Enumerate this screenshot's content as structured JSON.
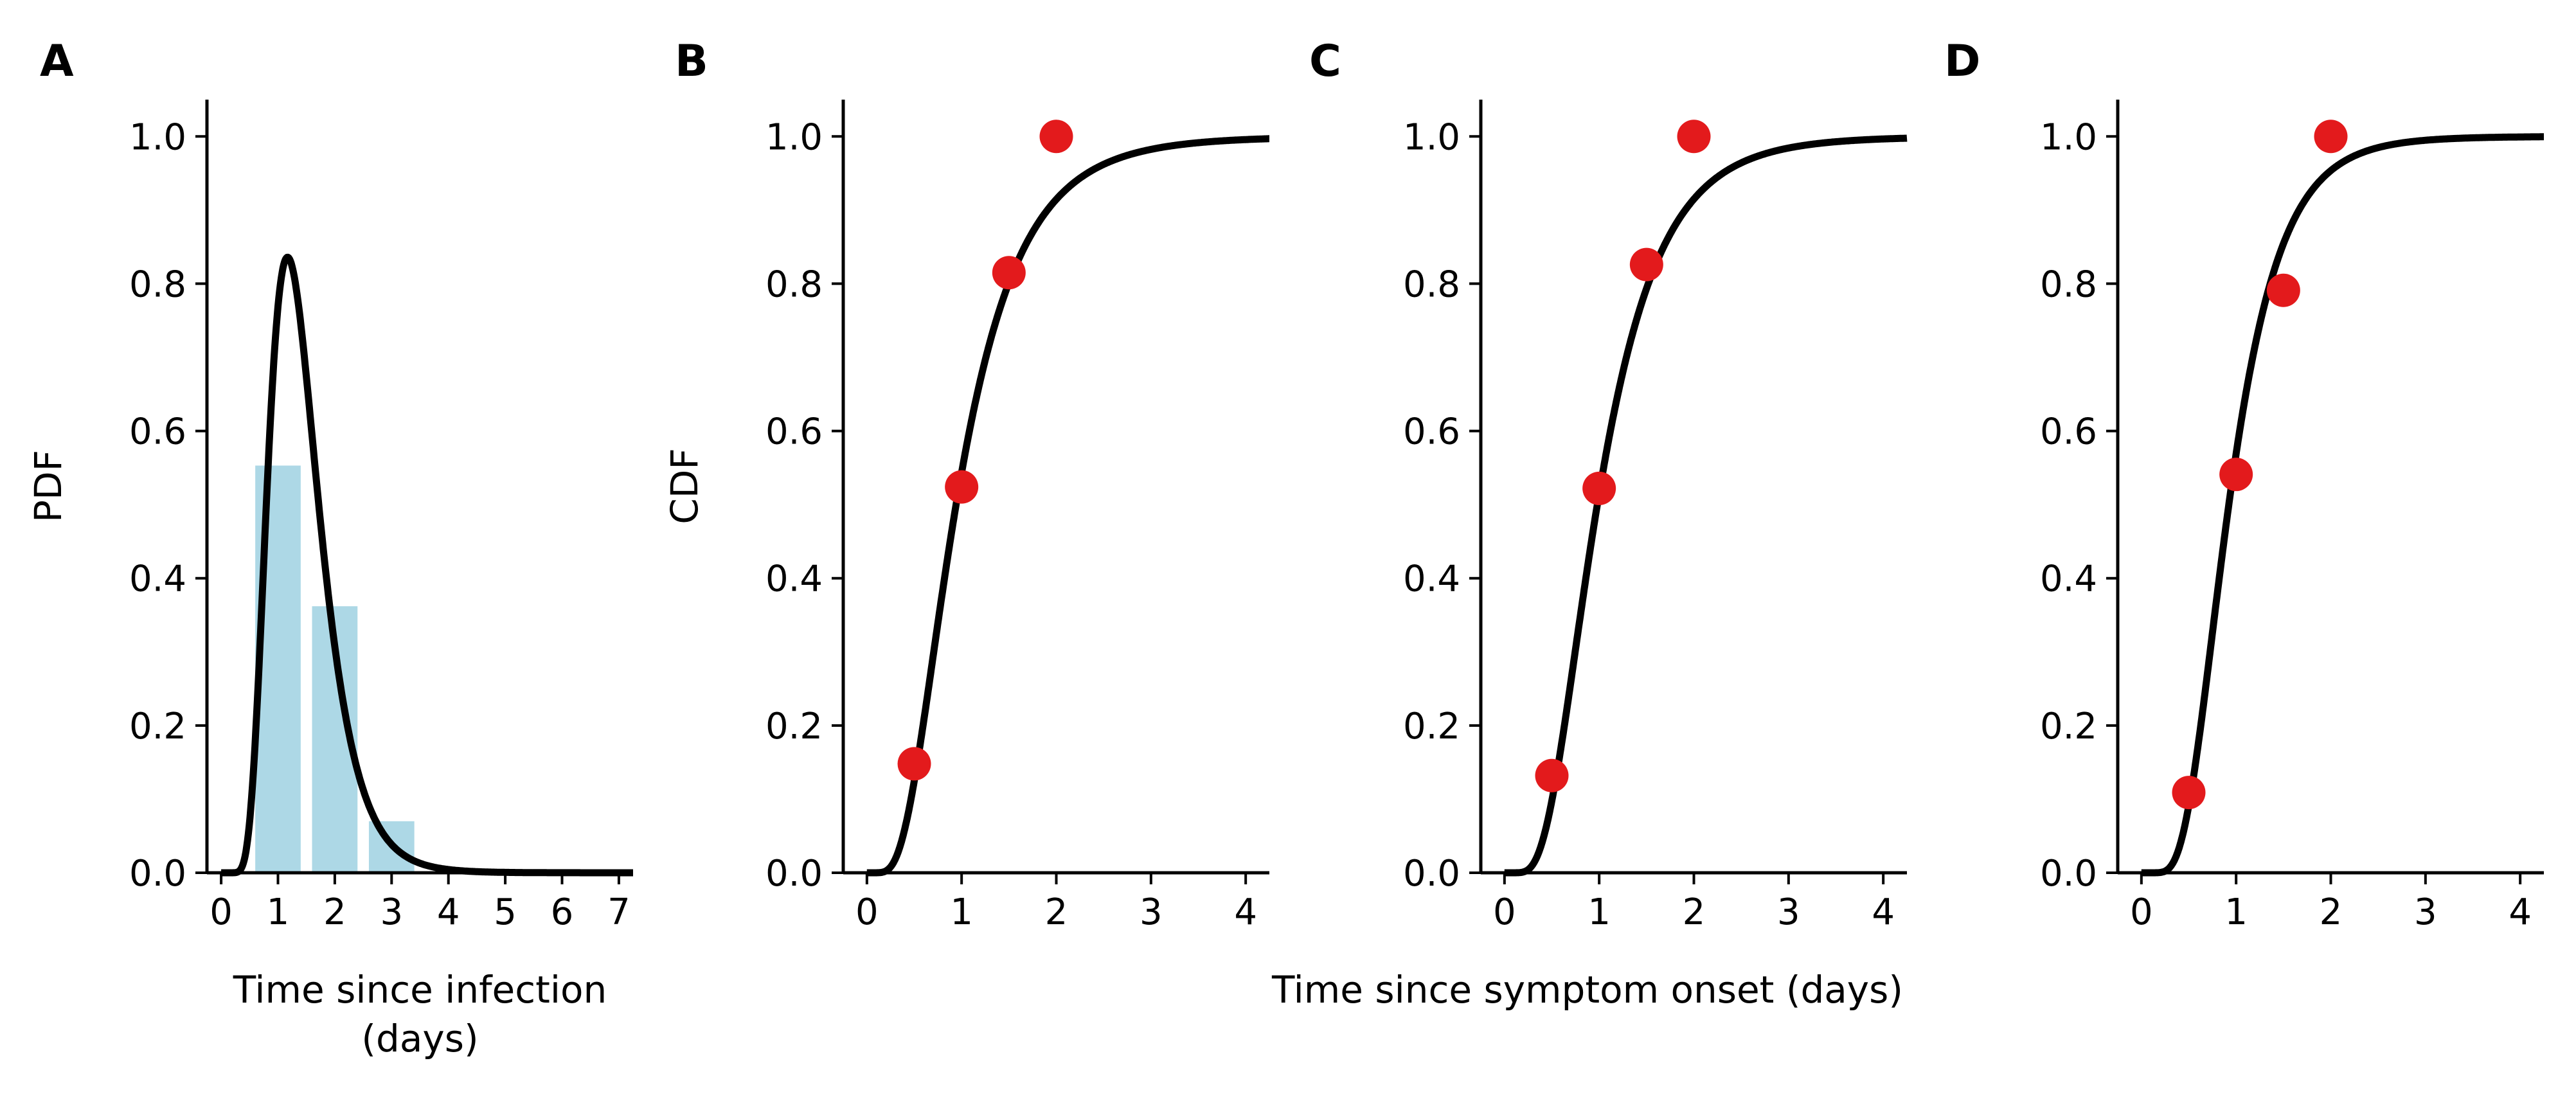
{
  "colors": {
    "curve": "#000000",
    "bar": "#add8e6",
    "point": "#e31a1c"
  },
  "shared_xlabel": "Time since symptom onset (days)",
  "chart_data": [
    {
      "letter": "A",
      "type": "bar",
      "xlabel_lines": [
        "Time since infection",
        "(days)"
      ],
      "ylabel": "PDF",
      "xlim": [
        -0.25,
        7.25
      ],
      "ylim": [
        0,
        1.05
      ],
      "xticks": [
        0,
        1,
        2,
        3,
        4,
        5,
        6,
        7
      ],
      "yticks": [
        0.0,
        0.2,
        0.4,
        0.6,
        0.8,
        1.0
      ],
      "xtick_labels": [
        "0",
        "1",
        "2",
        "3",
        "4",
        "5",
        "6",
        "7"
      ],
      "ytick_labels": [
        "0.0",
        "0.2",
        "0.4",
        "0.6",
        "0.8",
        "1.0"
      ],
      "bars": [
        {
          "x": 1,
          "height": 0.553
        },
        {
          "x": 2,
          "height": 0.362
        },
        {
          "x": 3,
          "height": 0.07
        }
      ],
      "bar_width": 0.8,
      "curve": {
        "kind": "lognormal_pdf",
        "mu": 0.3,
        "sigma": 0.38,
        "x_range": [
          0,
          7.25
        ]
      },
      "grid": false,
      "legend": "none"
    },
    {
      "letter": "B",
      "type": "line",
      "xlabel": "",
      "ylabel": "CDF",
      "xlim": [
        -0.25,
        4.25
      ],
      "ylim": [
        0,
        1.05
      ],
      "xticks": [
        0,
        1,
        2,
        3,
        4
      ],
      "yticks": [
        0.0,
        0.2,
        0.4,
        0.6,
        0.8,
        1.0
      ],
      "xtick_labels": [
        "0",
        "1",
        "2",
        "3",
        "4"
      ],
      "ytick_labels": [
        "0.0",
        "0.2",
        "0.4",
        "0.6",
        "0.8",
        "1.0"
      ],
      "points": [
        {
          "x": 0.5,
          "y": 0.148
        },
        {
          "x": 1.0,
          "y": 0.524
        },
        {
          "x": 1.5,
          "y": 0.815
        },
        {
          "x": 2.0,
          "y": 1.0
        }
      ],
      "curve": {
        "kind": "lognormal_cdf",
        "mu": -0.06,
        "sigma": 0.55,
        "x_range": [
          0,
          4.25
        ]
      },
      "grid": false,
      "legend": "none"
    },
    {
      "letter": "C",
      "type": "line",
      "xlabel": "",
      "ylabel": "",
      "xlim": [
        -0.25,
        4.25
      ],
      "ylim": [
        0,
        1.05
      ],
      "xticks": [
        0,
        1,
        2,
        3,
        4
      ],
      "yticks": [
        0.0,
        0.2,
        0.4,
        0.6,
        0.8,
        1.0
      ],
      "xtick_labels": [
        "0",
        "1",
        "2",
        "3",
        "4"
      ],
      "ytick_labels": [
        "0.0",
        "0.2",
        "0.4",
        "0.6",
        "0.8",
        "1.0"
      ],
      "points": [
        {
          "x": 0.5,
          "y": 0.132
        },
        {
          "x": 1.0,
          "y": 0.522
        },
        {
          "x": 1.5,
          "y": 0.826
        },
        {
          "x": 2.0,
          "y": 1.0
        }
      ],
      "curve": {
        "kind": "lognormal_cdf",
        "mu": -0.02,
        "sigma": 0.52,
        "x_range": [
          0,
          4.25
        ]
      },
      "grid": false,
      "legend": "none"
    },
    {
      "letter": "D",
      "type": "line",
      "xlabel": "",
      "ylabel": "",
      "xlim": [
        -0.25,
        4.25
      ],
      "ylim": [
        0,
        1.05
      ],
      "xticks": [
        0,
        1,
        2,
        3,
        4
      ],
      "yticks": [
        0.0,
        0.2,
        0.4,
        0.6,
        0.8,
        1.0
      ],
      "xtick_labels": [
        "0",
        "1",
        "2",
        "3",
        "4"
      ],
      "ytick_labels": [
        "0.0",
        "0.2",
        "0.4",
        "0.6",
        "0.8",
        "1.0"
      ],
      "points": [
        {
          "x": 0.5,
          "y": 0.109
        },
        {
          "x": 1.0,
          "y": 0.541
        },
        {
          "x": 1.5,
          "y": 0.791
        },
        {
          "x": 2.0,
          "y": 1.0
        }
      ],
      "curve": {
        "kind": "lognormal_cdf",
        "mu": -0.08,
        "sigma": 0.46,
        "x_range": [
          0,
          4.25
        ]
      },
      "grid": false,
      "legend": "none"
    }
  ]
}
